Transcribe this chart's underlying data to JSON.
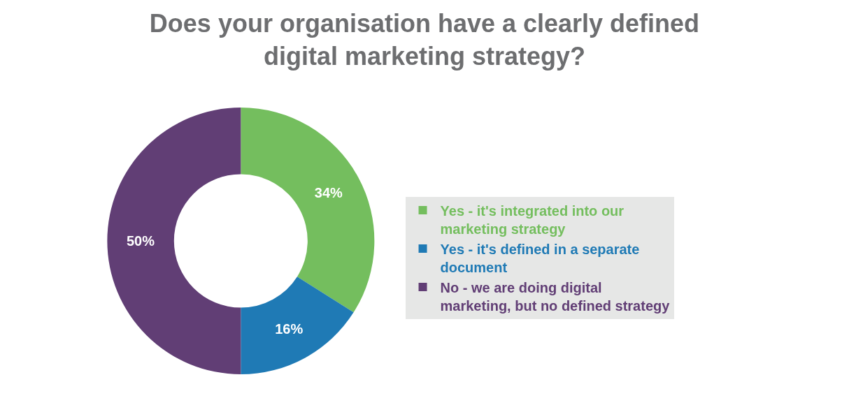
{
  "chart_data": {
    "type": "donut",
    "title": "Does your organisation have a clearly defined digital marketing strategy?",
    "categories": [
      "Yes - it's integrated into our marketing strategy",
      "Yes - it's defined in a separate document",
      "No - we are doing digital marketing, but no defined strategy"
    ],
    "values": [
      34,
      16,
      50
    ],
    "colors": [
      "#74be5e",
      "#1f7ab5",
      "#613e75"
    ],
    "value_labels": [
      "34%",
      "16%",
      "50%"
    ],
    "legend": "right"
  }
}
